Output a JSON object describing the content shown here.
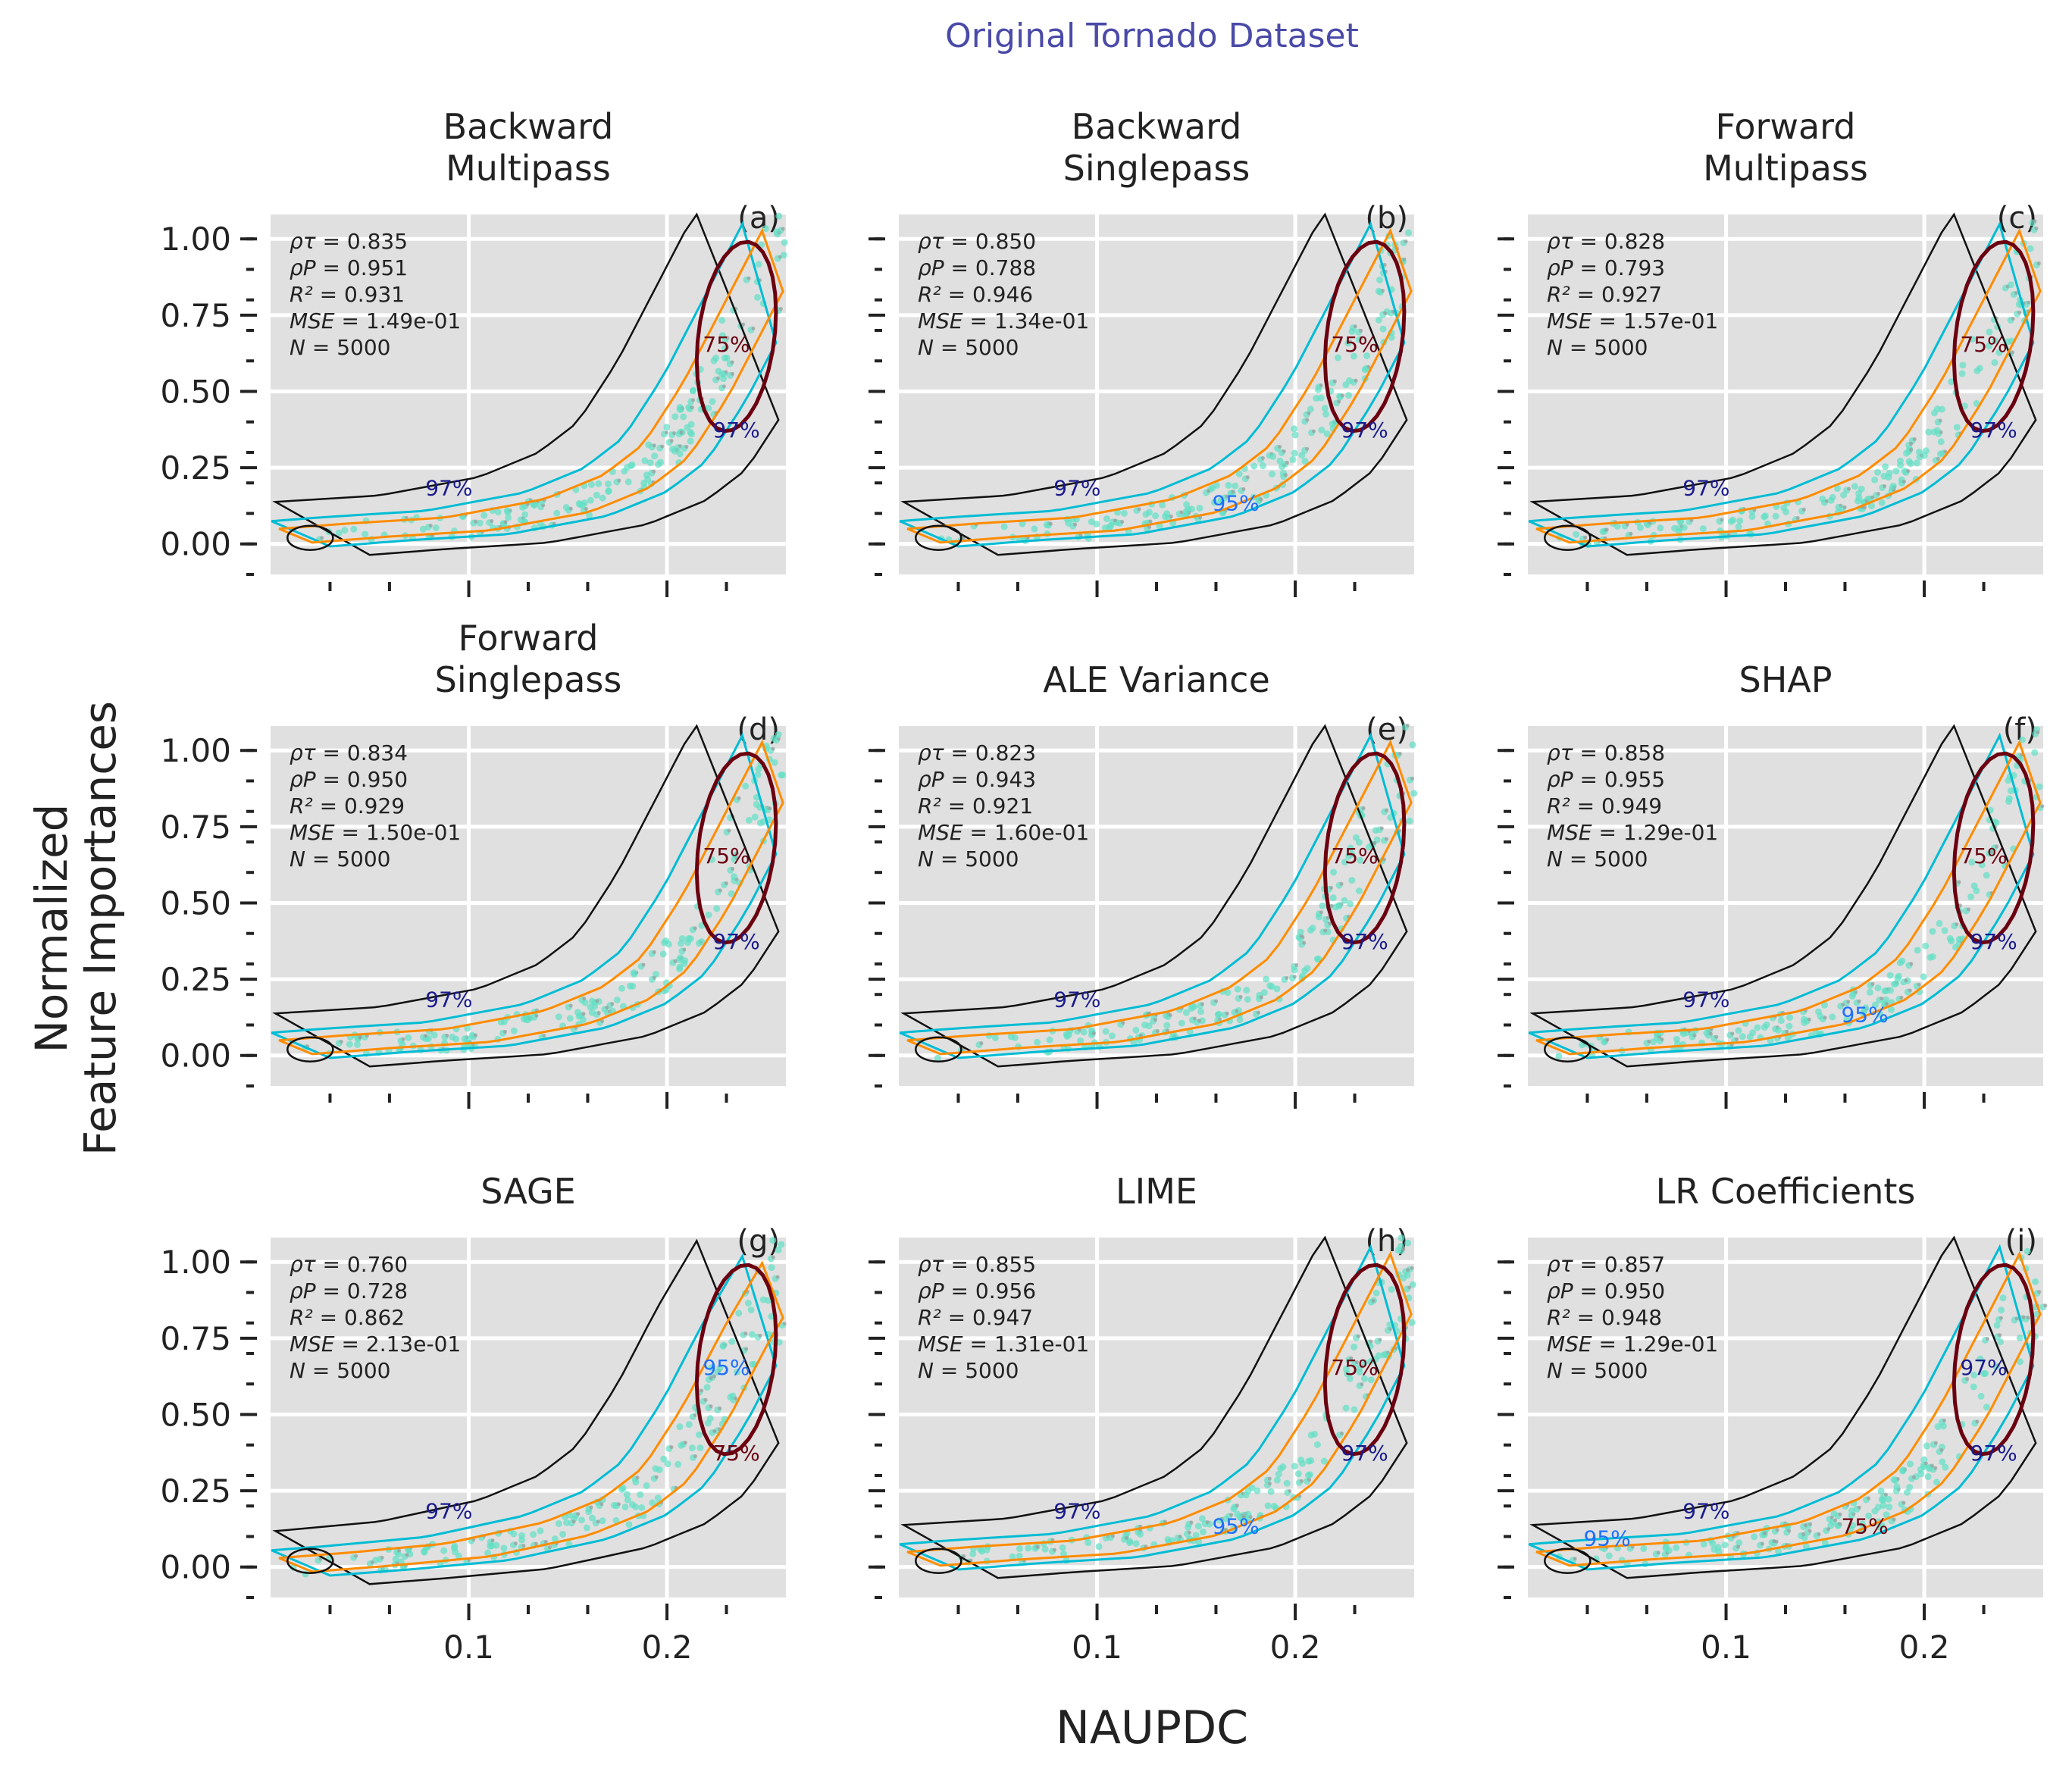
{
  "figure": {
    "title": "Original Tornado Dataset",
    "xlabel": "NAUPDC",
    "ylabel_line1": "Normalized",
    "ylabel_line2": "Feature Importances",
    "title_color": "#4a4aa8"
  },
  "colors": {
    "panel_bg": "#e0e0e0",
    "grid": "#ffffff",
    "scatter": "#5fe0c4",
    "contour_97": "#111111",
    "contour_95": "#00bcd4",
    "contour_90": "#ff8c00",
    "contour_75": "#6b0010",
    "contour_blue": "#1e6fff",
    "label_97": "#1a1a8c"
  },
  "y_ticks": [
    "1.00",
    "0.75",
    "0.50",
    "0.25",
    "0.00"
  ],
  "x_ticks": [
    "0.1",
    "0.2"
  ],
  "chart_data": [
    {
      "type": "scatter",
      "panel_label": "(a)",
      "title": [
        "Backward",
        "Multipass"
      ],
      "stats": {
        "rho_tau": "0.835",
        "rho_p": "0.951",
        "r2": "0.931",
        "mse": "1.49e-01",
        "n": "5000"
      },
      "contour_labels": [
        "97%",
        "97%",
        "75%"
      ],
      "x": [
        0.01,
        0.05,
        0.1,
        0.15,
        0.18,
        0.2,
        0.22,
        0.24,
        0.26
      ],
      "y": [
        0.02,
        0.04,
        0.06,
        0.12,
        0.2,
        0.3,
        0.5,
        0.75,
        1.0
      ],
      "xlim": [
        0.0,
        0.26
      ],
      "ylim": [
        -0.1,
        1.08
      ]
    },
    {
      "type": "scatter",
      "panel_label": "(b)",
      "title": [
        "Backward",
        "Singlepass"
      ],
      "stats": {
        "rho_tau": "0.850",
        "rho_p": "0.788",
        "r2": "0.946",
        "mse": "1.34e-01",
        "n": "5000"
      },
      "contour_labels": [
        "97%",
        "97%",
        "75%",
        "95%"
      ],
      "x": [
        0.01,
        0.05,
        0.1,
        0.15,
        0.18,
        0.2,
        0.22,
        0.24,
        0.26
      ],
      "y": [
        0.02,
        0.04,
        0.06,
        0.12,
        0.2,
        0.3,
        0.5,
        0.75,
        1.0
      ],
      "xlim": [
        0.0,
        0.26
      ],
      "ylim": [
        -0.1,
        1.08
      ]
    },
    {
      "type": "scatter",
      "panel_label": "(c)",
      "title": [
        "Forward",
        "Multipass"
      ],
      "stats": {
        "rho_tau": "0.828",
        "rho_p": "0.793",
        "r2": "0.927",
        "mse": "1.57e-01",
        "n": "5000"
      },
      "contour_labels": [
        "97%",
        "97%",
        "75%"
      ],
      "x": [
        0.01,
        0.05,
        0.1,
        0.15,
        0.18,
        0.2,
        0.22,
        0.24,
        0.26
      ],
      "y": [
        0.02,
        0.04,
        0.06,
        0.12,
        0.2,
        0.3,
        0.5,
        0.75,
        1.0
      ],
      "xlim": [
        0.0,
        0.26
      ],
      "ylim": [
        -0.1,
        1.08
      ]
    },
    {
      "type": "scatter",
      "panel_label": "(d)",
      "title": [
        "Forward",
        "Singlepass"
      ],
      "stats": {
        "rho_tau": "0.834",
        "rho_p": "0.950",
        "r2": "0.929",
        "mse": "1.50e-01",
        "n": "5000"
      },
      "contour_labels": [
        "97%",
        "97%",
        "75%"
      ],
      "x": [
        0.01,
        0.05,
        0.1,
        0.15,
        0.18,
        0.2,
        0.22,
        0.24,
        0.26
      ],
      "y": [
        0.02,
        0.04,
        0.06,
        0.12,
        0.2,
        0.3,
        0.5,
        0.75,
        1.0
      ],
      "xlim": [
        0.0,
        0.26
      ],
      "ylim": [
        -0.1,
        1.08
      ]
    },
    {
      "type": "scatter",
      "panel_label": "(e)",
      "title": [
        "ALE Variance"
      ],
      "stats": {
        "rho_tau": "0.823",
        "rho_p": "0.943",
        "r2": "0.921",
        "mse": "1.60e-01",
        "n": "5000"
      },
      "contour_labels": [
        "97%",
        "97%",
        "75%"
      ],
      "x": [
        0.01,
        0.05,
        0.1,
        0.15,
        0.18,
        0.2,
        0.22,
        0.24,
        0.26
      ],
      "y": [
        0.02,
        0.04,
        0.06,
        0.12,
        0.2,
        0.3,
        0.5,
        0.75,
        1.0
      ],
      "xlim": [
        0.0,
        0.26
      ],
      "ylim": [
        -0.1,
        1.08
      ]
    },
    {
      "type": "scatter",
      "panel_label": "(f)",
      "title": [
        "SHAP"
      ],
      "stats": {
        "rho_tau": "0.858",
        "rho_p": "0.955",
        "r2": "0.949",
        "mse": "1.29e-01",
        "n": "5000"
      },
      "contour_labels": [
        "97%",
        "97%",
        "75%",
        "95%"
      ],
      "x": [
        0.01,
        0.05,
        0.1,
        0.15,
        0.18,
        0.2,
        0.22,
        0.24,
        0.26
      ],
      "y": [
        0.02,
        0.04,
        0.06,
        0.12,
        0.2,
        0.3,
        0.5,
        0.75,
        1.0
      ],
      "xlim": [
        0.0,
        0.26
      ],
      "ylim": [
        -0.1,
        1.08
      ]
    },
    {
      "type": "scatter",
      "panel_label": "(g)",
      "title": [
        "SAGE"
      ],
      "stats": {
        "rho_tau": "0.760",
        "rho_p": "0.728",
        "r2": "0.862",
        "mse": "2.13e-01",
        "n": "5000"
      },
      "contour_labels": [
        "97%",
        "75%",
        "95%"
      ],
      "x": [
        0.01,
        0.05,
        0.1,
        0.15,
        0.18,
        0.2,
        0.22,
        0.24,
        0.26
      ],
      "y": [
        0.0,
        0.02,
        0.05,
        0.12,
        0.2,
        0.3,
        0.5,
        0.75,
        0.97
      ],
      "xlim": [
        0.0,
        0.26
      ],
      "ylim": [
        -0.1,
        1.08
      ]
    },
    {
      "type": "scatter",
      "panel_label": "(h)",
      "title": [
        "LIME"
      ],
      "stats": {
        "rho_tau": "0.855",
        "rho_p": "0.956",
        "r2": "0.947",
        "mse": "1.31e-01",
        "n": "5000"
      },
      "contour_labels": [
        "97%",
        "97%",
        "75%",
        "95%"
      ],
      "x": [
        0.01,
        0.05,
        0.1,
        0.15,
        0.18,
        0.2,
        0.22,
        0.24,
        0.26
      ],
      "y": [
        0.02,
        0.04,
        0.06,
        0.12,
        0.2,
        0.3,
        0.5,
        0.75,
        1.0
      ],
      "xlim": [
        0.0,
        0.26
      ],
      "ylim": [
        -0.1,
        1.08
      ]
    },
    {
      "type": "scatter",
      "panel_label": "(i)",
      "title": [
        "LR Coefficients"
      ],
      "stats": {
        "rho_tau": "0.857",
        "rho_p": "0.950",
        "r2": "0.948",
        "mse": "1.29e-01",
        "n": "5000"
      },
      "contour_labels": [
        "97%",
        "97%",
        "97%",
        "75%",
        "95%"
      ],
      "x": [
        0.01,
        0.05,
        0.1,
        0.15,
        0.18,
        0.2,
        0.22,
        0.24,
        0.26
      ],
      "y": [
        0.02,
        0.04,
        0.06,
        0.12,
        0.2,
        0.3,
        0.5,
        0.75,
        1.0
      ],
      "xlim": [
        0.0,
        0.26
      ],
      "ylim": [
        -0.1,
        1.08
      ]
    }
  ]
}
